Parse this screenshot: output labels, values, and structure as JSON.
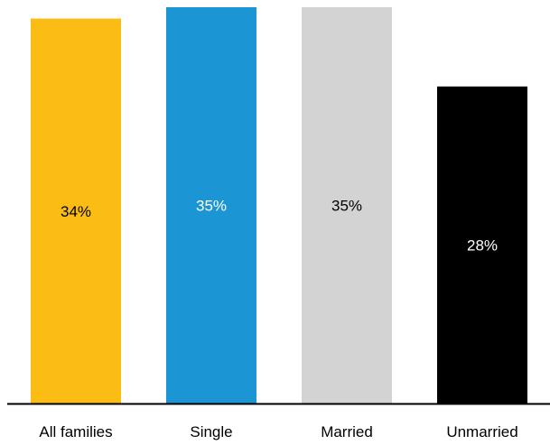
{
  "chart_data": {
    "type": "bar",
    "title": "",
    "xlabel": "",
    "ylabel": "",
    "categories": [
      "All families",
      "Single",
      "Married",
      "Unmarried"
    ],
    "values": [
      34,
      35,
      35,
      28
    ],
    "value_labels": [
      "34%",
      "35%",
      "35%",
      "28%"
    ],
    "unit": "%",
    "ylim": [
      0,
      35
    ],
    "grid": false,
    "legend": "none",
    "colors": [
      "#FBBC14",
      "#1B95D3",
      "#D3D3D3",
      "#000000"
    ],
    "label_colors": [
      "#000000",
      "#ffffff",
      "#000000",
      "#ffffff"
    ],
    "axis_color": "#000000"
  }
}
